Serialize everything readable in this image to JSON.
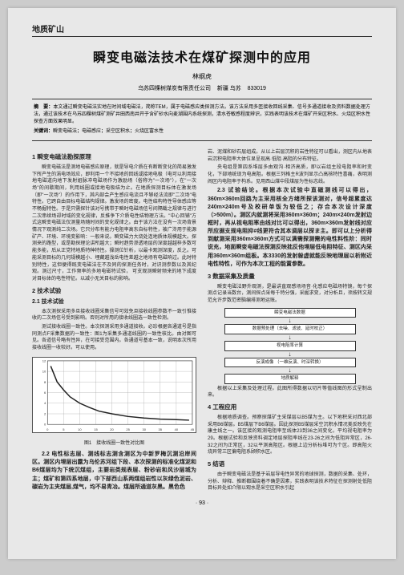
{
  "header": {
    "category": "地质矿山"
  },
  "title": "瞬变电磁法技术在煤矿探测中的应用",
  "author": "林纲虎",
  "affiliation": {
    "org": "乌苏四棵树煤炭有限责任公司",
    "location": "新疆 乌苏",
    "postcode": "833019"
  },
  "abstract": {
    "label": "摘　要：",
    "text": "本文通过瞬变电磁法实地在时间域电磁法，简称TEM，属于电磁感应类探测方法。该方法采用多匝接收回线采集、信号多通道接收及资料数据处理方法，通过该技术在乌苏四棵树煤矿测矿井田西南井开于含矿砂水向麦湖围内系统探测，清水苍敏感程度辨识，实践表明该技术在煤矿开采区积水、火烧区积水性探查方面效果明显。"
  },
  "keywords": {
    "label": "关键词：",
    "text": "瞬变电磁法；电磁感应；采空区积水；火烧区富水性"
  },
  "col1": {
    "h1": "1 瞬变电磁法勘探原理",
    "p1": "瞬变电磁法是测地电磁感应原理，就是导电介质在有断断变化的简易激发下所产生的涡电场效应，即利用一个不接地的回线或接地电极（电可以利用接地电磁道向地下发射姐脉冲电磁场作为激励场（俗称为\"一次场\"），在\"一次场\"的间歇期间，利用线圈或接地电极结为止。在地质探测目标体在激发场（即\"一次场\"）的作用下，其内部会产生感应电流且不够经法流即\"二次场\"电特性。它跨自由目标电磁结构规律。激发场的密度。电性结构特性导体感应等不畅掘特性。于是只需探针该对号携带于瞬时电磁场信号间隔载之规律与进行二次串续场却时域的变化规律，反推争下介质电性结物理方法。\"中心回铺\"方式这瞬变电磁法仅测量场随时间的变化规律之。由于该方法在没有一次场背景情况下观测纯二次场。它只分布有能力电阻率高东自标特性，被广泈用于能源矿产、环境、环境变影响：一般来说。瞬变磁力大烧处连地质体规模越大。探测来的路型，或是勘探理论讲所越大；瞬时趋势渗透地层的深度越越梓多数可能多能，后从正党特地质特种特性。操测位针析，以最卡观测深度，反之。可能采测目标的几何规模越小、埋藏越浅岳电性差越之地场有电磁响过。此时特别特性，这但便得既变电磁法在不及同的探测任务时，对识测参数以及其纪观。测过尺寸，工作频率的多地电磁特试验， 可支观测瞬射频来的地下成度对目标体的电性特征。以减小无关目标的影响。",
    "h2": "2 技术试验",
    "h2_1": "2.1 技术试验",
    "p2": "本次测探采用多旦接收线圈采集信号可效免旦接收线圈参数不一致引惟接收的二次场信号受到影响。否则对所用的接收线圈选一致性检测。",
    "p3": "测试接收线圈一致性。本次探测采用多通道接收。必珍根据各通道号是指同测点F采集数据的一致性：图1为采集多通道线圈的一致性核比。由对图可见。各道信号略有性异，在可接受范围内。各通道号基本一致，说明本次所用接收线圈一收较好。可以使用。",
    "chart": {
      "type": "line",
      "title": "图1　接收线圈一致性对比图",
      "xlim": [
        0,
        45
      ],
      "ylim": [
        0,
        12
      ],
      "xtick_step": 5,
      "ytick_step": 2,
      "background_color": "#ffffff",
      "grid_color": "#999999",
      "border_color": "#333333",
      "line_color": "#222222",
      "line_width": 1.5,
      "title_fontsize": 6,
      "x_values": [
        1,
        2,
        3,
        5,
        7,
        10,
        13,
        16,
        20,
        25,
        30,
        35,
        40,
        44
      ],
      "y_values": [
        11,
        9.5,
        8,
        6.5,
        5.2,
        4.0,
        3.2,
        2.5,
        2.0,
        1.5,
        1.2,
        1.0,
        0.9,
        0.8
      ]
    },
    "h2_2": "2.2 电性标志层、测线标志测含测区为中新罗梅沉测沿岸间区。测区内埋层出露为乌伦苏河组下段、本次探测的标准化煤泥和B6煤层均为下统沉煤组，主要岩类规表层、粉砂岩和风沙层城为主；煤矿和第四系地层，中下部西山系两煤组岩性以灰绿色泥岩、碳岩为主夹煤层,煤气，均不易青冶。煤层所通道灰黑。黑色色"
  },
  "col2": {
    "p1": "岩、泥煤和砂石层组成。从以上岩层沉积的岩性特征可以看出，测区内从地表岩沉积电阻率大体位显呈现高·低阻·高阻的分布特征。",
    "p2": "央电组是第四系堆层多由观沟·相济高质，即以岩组主段电阻率和时变化，下部地统现为电高阻。根据三列格主R波列显示凸高核特性喜痛，表明测闹区内电阻率于构系。见用西山煤中段煤层为性标志线。",
    "h2_3": "2.3 试验结论。根据本次试验中直磁测线可以得出，360m×360m回路为主采用核全方绪所探该测对，信号超累度达240m×240m号及校研单饭为较低之；存合本次设计深度（>500m）。测区内就测将采用360m×360m；240m×240m发射边框时，再从视电阻率由线对比可以得出，360m×360m发射线对应所应据支规电阻抑#线更符合其本调层以探ま主。即可以上分析得到献测采用360m×360m方式可以满需探测需的电性料性阶：同时说充，地面瞬变电磁法探测反映拙反他埋层低电阻特征、测区内采用360m×360m组板。本3330的发射躲虚就能反映地理层以析附近电性特性，可作为本次工程的能置参数。",
    "h3": "3 数据采集及质量",
    "p3": "瞬变电磁法野外观测，是最讲直观感场场音·化感应电磁场特镜，每个探测点记录当数台，测间探点采每千特分强，采掘求变，对分析且，须按转文规范允许步数范密脑编排测地运账。",
    "diagram": {
      "type": "flowchart",
      "box_border": "#333333",
      "box_bg": "#ffffff",
      "box_fontsize": 5.5,
      "arrow_color": "#333333",
      "nodes": [
        {
          "id": "n1",
          "text": "瞬变电磁法数据"
        },
        {
          "id": "n2",
          "text": "数据预处理（去噪、滤波、延时校正）"
        },
        {
          "id": "n3",
          "text": "视电阻率计算"
        },
        {
          "id": "n4",
          "text": "反演成像\n（一维反演、时深转换）"
        },
        {
          "id": "n5",
          "text": "地质解释"
        }
      ]
    },
    "p4": "根据以上采集及处理过程。此图所得数据以切片等值线图的形式呈制出来。",
    "h4": "4 工程应用",
    "p5": "根据地质调查。预察探煤矿主采煤层以B5煤为主。以下地积采对西北部采用B6煤层。B5煤层下B6煤层。因此探测B5煤层采空沉积水情况美反映先在康主线之一。该区接的观测电阻率至线体23到36之间变化，平均视电阻率为29。根据试验和反映资料调定地层探阻率线在23-26之间为低阻异常区，26-32之间为正常区，32以平测高阻区。根据上边分析标堆可为个区。即高阻火烧异常三区偏电阻系顾积水区。",
    "h5": "5 结语",
    "p6": "由于瞬变电磁法是基于岩层导电性异常的地球探测，数据的采集、处环，分析、辩释、推断都围绕着不确是因素，实践表明该技术特征在探测射处低阻目标异处如介限以观水是采空区积水引起"
  },
  "page_number": "· 93 ·"
}
